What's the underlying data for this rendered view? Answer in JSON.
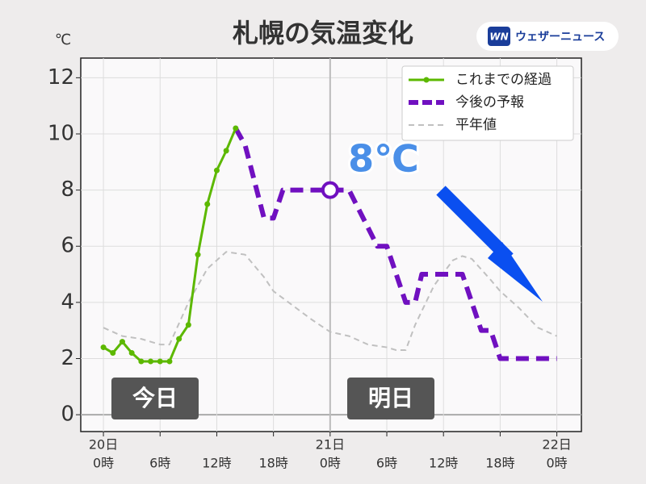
{
  "chart_data": {
    "type": "line",
    "title": "札幌の気温変化",
    "y_unit": "℃",
    "brand": "ウェザーニュース",
    "brand_mark": "WN",
    "annotation": "8℃",
    "day_labels_box": [
      "今日",
      "明日"
    ],
    "marker": {
      "x": 24,
      "y": 8
    },
    "xlim": [
      -2.4,
      50.6
    ],
    "ylim": [
      -0.6,
      12.7
    ],
    "yticks": [
      0,
      2,
      4,
      6,
      8,
      10,
      12
    ],
    "xticks": [
      {
        "value": 0,
        "label": "0時"
      },
      {
        "value": 6,
        "label": "6時"
      },
      {
        "value": 12,
        "label": "12時"
      },
      {
        "value": 18,
        "label": "18時"
      },
      {
        "value": 24,
        "label": "0時"
      },
      {
        "value": 30,
        "label": "6時"
      },
      {
        "value": 36,
        "label": "12時"
      },
      {
        "value": 42,
        "label": "18時"
      },
      {
        "value": 48,
        "label": "0時"
      }
    ],
    "day_ticks": [
      {
        "value": 0,
        "label": "20日"
      },
      {
        "value": 24,
        "label": "21日"
      },
      {
        "value": 48,
        "label": "22日"
      }
    ],
    "grid": true,
    "legend": "upper right",
    "series": [
      {
        "name": "これまでの経過",
        "color": "#5cb800",
        "style": "solid-dots",
        "x": [
          0,
          1,
          2,
          3,
          4,
          5,
          6,
          7,
          8,
          9,
          10,
          11,
          12,
          13,
          14
        ],
        "values": [
          2.4,
          2.2,
          2.6,
          2.2,
          1.9,
          1.9,
          1.9,
          1.9,
          2.7,
          3.2,
          5.7,
          7.5,
          8.7,
          9.4,
          10.2
        ]
      },
      {
        "name": "今後の予報",
        "color": "#7010c0",
        "style": "dash",
        "x": [
          14,
          15,
          17,
          18,
          19,
          24,
          26,
          29,
          30,
          32,
          33,
          33.7,
          38,
          40,
          41,
          42,
          48
        ],
        "values": [
          10.2,
          9.6,
          7,
          7,
          8,
          8,
          8,
          6,
          6,
          4,
          4,
          5,
          5,
          3,
          3,
          2,
          2
        ]
      },
      {
        "name": "平年値",
        "color": "#c0c0c0",
        "style": "thin-dash",
        "x": [
          0,
          2,
          4,
          6,
          7,
          9,
          11,
          13,
          15,
          17,
          18,
          20,
          22,
          24,
          26,
          28,
          30,
          31,
          32,
          33,
          35,
          37,
          38,
          39,
          41,
          42,
          44,
          46,
          48
        ],
        "values": [
          3.1,
          2.8,
          2.7,
          2.5,
          2.5,
          4,
          5.2,
          5.8,
          5.7,
          4.9,
          4.4,
          3.9,
          3.4,
          2.95,
          2.8,
          2.5,
          2.4,
          2.3,
          2.3,
          3.2,
          4.6,
          5.5,
          5.65,
          5.55,
          4.8,
          4.4,
          3.8,
          3.1,
          2.8
        ]
      }
    ]
  }
}
